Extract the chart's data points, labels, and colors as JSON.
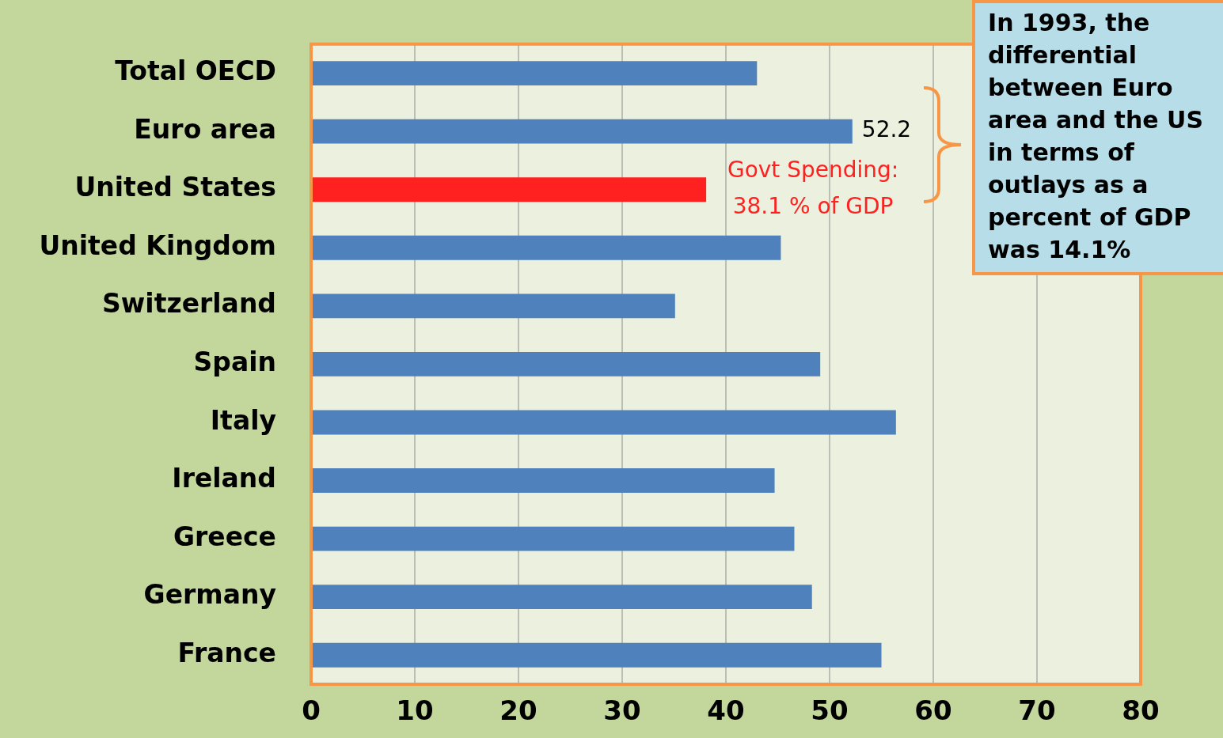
{
  "chart_data": {
    "type": "bar",
    "orientation": "horizontal",
    "categories": [
      "Total OECD",
      "Euro area",
      "United States",
      "United Kingdom",
      "Switzerland",
      "Spain",
      "Italy",
      "Ireland",
      "Greece",
      "Germany",
      "France"
    ],
    "values": [
      43.0,
      52.2,
      38.1,
      45.3,
      35.1,
      49.1,
      56.4,
      44.7,
      46.6,
      48.3,
      55.0
    ],
    "colors": [
      "#4f81bd",
      "#4f81bd",
      "#ff2020",
      "#4f81bd",
      "#4f81bd",
      "#4f81bd",
      "#4f81bd",
      "#4f81bd",
      "#4f81bd",
      "#4f81bd",
      "#4f81bd"
    ],
    "value_labels": [
      null,
      "52.2",
      null,
      null,
      null,
      null,
      null,
      null,
      null,
      null,
      null
    ],
    "xlim": [
      0,
      80
    ],
    "xticks": [
      0,
      10,
      20,
      30,
      40,
      50,
      60,
      70,
      80
    ],
    "grid": "x",
    "legend": false,
    "annotations": [
      {
        "text": "Govt Spending:\n38.1 % of GDP",
        "x": 38.1,
        "y": "United States"
      },
      "In 1993, the differential between Euro area and the US in terms of outlays as a percent of GDP was 14.1%"
    ]
  }
}
